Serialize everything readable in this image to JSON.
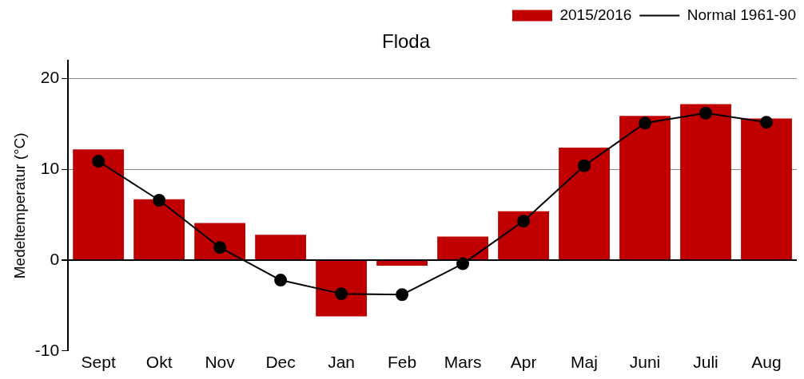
{
  "chart_data": {
    "type": "bar",
    "title": "Floda",
    "ylabel": "Medeltemperatur (°C)",
    "categories": [
      "Sept",
      "Okt",
      "Nov",
      "Dec",
      "Jan",
      "Feb",
      "Mars",
      "Apr",
      "Maj",
      "Juni",
      "Juli",
      "Aug"
    ],
    "series": [
      {
        "name": "2015/2016",
        "color": "#c00000",
        "values": [
          12.2,
          6.7,
          4.1,
          2.8,
          -6.2,
          -0.6,
          2.6,
          5.4,
          12.4,
          15.9,
          17.2,
          15.6
        ]
      },
      {
        "name": "Normal 1961-90",
        "type": "line",
        "color": "#000000",
        "marker": "circle",
        "values": [
          10.9,
          6.6,
          1.4,
          -2.2,
          -3.7,
          -3.8,
          -0.4,
          4.3,
          10.4,
          15.1,
          16.2,
          15.2
        ]
      }
    ],
    "ylim": [
      -10,
      22
    ],
    "yticks": [
      -10,
      0,
      10,
      20
    ],
    "grid": "y",
    "legend": "top right"
  }
}
